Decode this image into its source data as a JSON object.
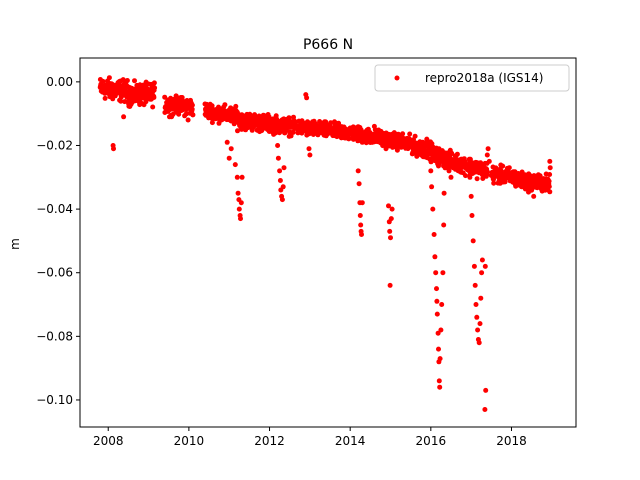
{
  "chart_data": {
    "type": "scatter",
    "title": "P666 N",
    "xlabel": "",
    "ylabel": "m",
    "xlim": [
      2007.3,
      2019.6
    ],
    "ylim": [
      -0.1085,
      0.0075
    ],
    "x_ticks": [
      2008,
      2010,
      2012,
      2014,
      2016,
      2018
    ],
    "x_tick_labels": [
      "2008",
      "2010",
      "2012",
      "2014",
      "2016",
      "2018"
    ],
    "y_ticks": [
      0.0,
      -0.02,
      -0.04,
      -0.06,
      -0.08,
      -0.1
    ],
    "y_tick_labels": [
      "0.00",
      "−0.02",
      "−0.04",
      "−0.06",
      "−0.08",
      "−0.10"
    ],
    "legend_position": "upper-right",
    "grid": false,
    "series": [
      {
        "name": "repro2018a (IGS14)",
        "color": "#ff0000",
        "marker": "circle",
        "trend_segments": [
          {
            "x": [
              2007.8,
              2008.5
            ],
            "y": [
              -0.002,
              -0.003
            ],
            "spread": 0.0025
          },
          {
            "x": [
              2008.5,
              2009.15
            ],
            "y": [
              -0.004,
              -0.004
            ],
            "spread": 0.0025
          },
          {
            "x": [
              2009.4,
              2010.1
            ],
            "y": [
              -0.007,
              -0.008
            ],
            "spread": 0.002
          },
          {
            "x": [
              2010.4,
              2011.2
            ],
            "y": [
              -0.009,
              -0.011
            ],
            "spread": 0.002
          },
          {
            "x": [
              2011.2,
              2012.5
            ],
            "y": [
              -0.012,
              -0.014
            ],
            "spread": 0.002
          },
          {
            "x": [
              2012.5,
              2014.0
            ],
            "y": [
              -0.014,
              -0.016
            ],
            "spread": 0.0018
          },
          {
            "x": [
              2014.0,
              2015.3
            ],
            "y": [
              -0.016,
              -0.019
            ],
            "spread": 0.0018
          },
          {
            "x": [
              2015.3,
              2016.05
            ],
            "y": [
              -0.019,
              -0.022
            ],
            "spread": 0.002
          },
          {
            "x": [
              2016.05,
              2016.8
            ],
            "y": [
              -0.023,
              -0.026
            ],
            "spread": 0.002
          },
          {
            "x": [
              2016.8,
              2017.4
            ],
            "y": [
              -0.026,
              -0.028
            ],
            "spread": 0.002
          },
          {
            "x": [
              2017.5,
              2018.1
            ],
            "y": [
              -0.029,
              -0.03
            ],
            "spread": 0.002
          },
          {
            "x": [
              2018.1,
              2018.95
            ],
            "y": [
              -0.031,
              -0.032
            ],
            "spread": 0.002
          }
        ],
        "outliers": [
          [
            2008.12,
            -0.02
          ],
          [
            2008.13,
            -0.021
          ],
          [
            2008.38,
            -0.011
          ],
          [
            2009.52,
            -0.011
          ],
          [
            2009.98,
            -0.012
          ],
          [
            2010.95,
            -0.019
          ],
          [
            2011.0,
            -0.024
          ],
          [
            2011.05,
            -0.021
          ],
          [
            2011.15,
            -0.026
          ],
          [
            2011.2,
            -0.03
          ],
          [
            2011.22,
            -0.035
          ],
          [
            2011.24,
            -0.037
          ],
          [
            2011.25,
            -0.04
          ],
          [
            2011.27,
            -0.042
          ],
          [
            2011.28,
            -0.043
          ],
          [
            2011.3,
            -0.038
          ],
          [
            2011.32,
            -0.03
          ],
          [
            2012.2,
            -0.02
          ],
          [
            2012.22,
            -0.024
          ],
          [
            2012.25,
            -0.028
          ],
          [
            2012.27,
            -0.031
          ],
          [
            2012.28,
            -0.034
          ],
          [
            2012.3,
            -0.036
          ],
          [
            2012.32,
            -0.037
          ],
          [
            2012.34,
            -0.033
          ],
          [
            2012.36,
            -0.027
          ],
          [
            2012.9,
            -0.004
          ],
          [
            2012.92,
            -0.005
          ],
          [
            2012.98,
            -0.021
          ],
          [
            2013.0,
            -0.023
          ],
          [
            2014.2,
            -0.028
          ],
          [
            2014.22,
            -0.032
          ],
          [
            2014.24,
            -0.038
          ],
          [
            2014.25,
            -0.042
          ],
          [
            2014.26,
            -0.045
          ],
          [
            2014.27,
            -0.047
          ],
          [
            2014.28,
            -0.048
          ],
          [
            2014.3,
            -0.038
          ],
          [
            2014.75,
            -0.017
          ],
          [
            2014.6,
            -0.014
          ],
          [
            2014.95,
            -0.039
          ],
          [
            2014.97,
            -0.044
          ],
          [
            2014.98,
            -0.047
          ],
          [
            2015.0,
            -0.049
          ],
          [
            2015.02,
            -0.043
          ],
          [
            2015.04,
            -0.04
          ],
          [
            2014.99,
            -0.064
          ],
          [
            2015.8,
            -0.019
          ],
          [
            2015.9,
            -0.018
          ],
          [
            2016.0,
            -0.028
          ],
          [
            2016.02,
            -0.033
          ],
          [
            2016.05,
            -0.04
          ],
          [
            2016.08,
            -0.048
          ],
          [
            2016.1,
            -0.055
          ],
          [
            2016.12,
            -0.06
          ],
          [
            2016.14,
            -0.065
          ],
          [
            2016.15,
            -0.069
          ],
          [
            2016.16,
            -0.073
          ],
          [
            2016.18,
            -0.079
          ],
          [
            2016.19,
            -0.084
          ],
          [
            2016.2,
            -0.088
          ],
          [
            2016.21,
            -0.094
          ],
          [
            2016.22,
            -0.096
          ],
          [
            2016.23,
            -0.087
          ],
          [
            2016.25,
            -0.078
          ],
          [
            2016.27,
            -0.07
          ],
          [
            2016.3,
            -0.06
          ],
          [
            2016.32,
            -0.045
          ],
          [
            2016.33,
            -0.035
          ],
          [
            2016.45,
            -0.028
          ],
          [
            2016.5,
            -0.03
          ],
          [
            2016.55,
            -0.027
          ],
          [
            2016.97,
            -0.03
          ],
          [
            2017.0,
            -0.036
          ],
          [
            2017.02,
            -0.042
          ],
          [
            2017.05,
            -0.05
          ],
          [
            2017.08,
            -0.058
          ],
          [
            2017.1,
            -0.064
          ],
          [
            2017.12,
            -0.07
          ],
          [
            2017.14,
            -0.074
          ],
          [
            2017.16,
            -0.078
          ],
          [
            2017.18,
            -0.081
          ],
          [
            2017.2,
            -0.082
          ],
          [
            2017.22,
            -0.076
          ],
          [
            2017.24,
            -0.068
          ],
          [
            2017.26,
            -0.06
          ],
          [
            2017.28,
            -0.056
          ],
          [
            2017.35,
            -0.058
          ],
          [
            2017.36,
            -0.097
          ],
          [
            2017.34,
            -0.103
          ],
          [
            2017.4,
            -0.023
          ],
          [
            2017.42,
            -0.021
          ],
          [
            2017.45,
            -0.025
          ],
          [
            2018.45,
            -0.033
          ],
          [
            2018.55,
            -0.036
          ],
          [
            2018.9,
            -0.034
          ],
          [
            2018.95,
            -0.025
          ],
          [
            2018.96,
            -0.027
          ]
        ]
      }
    ]
  }
}
